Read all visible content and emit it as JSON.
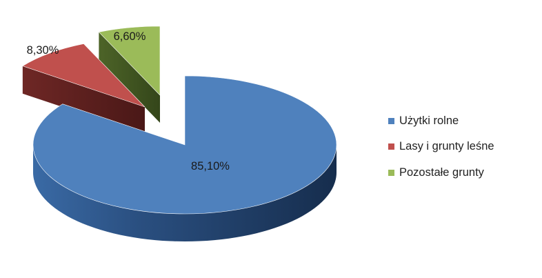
{
  "chart_data": {
    "type": "pie",
    "title": "",
    "slices": [
      {
        "label": "Użytki rolne",
        "value": 85.1,
        "value_label": "85,10%",
        "color": "#4F81BD"
      },
      {
        "label": "Lasy i grunty leśne",
        "value": 8.3,
        "value_label": "8,30%",
        "color": "#C0504D"
      },
      {
        "label": "Pozostałe grunty",
        "value": 6.6,
        "value_label": "6,60%",
        "color": "#9BBB59"
      }
    ],
    "legend_position": "right",
    "style": "3d-exploded"
  }
}
